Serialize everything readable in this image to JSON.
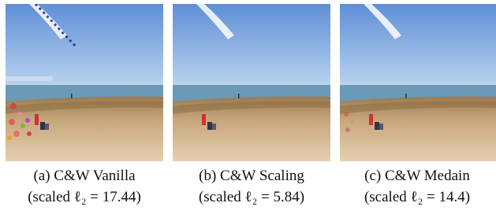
{
  "panels": [
    {
      "caption": "(a) C&W Vanilla",
      "metric": "(scaled ℓ₂ = 17.44)"
    },
    {
      "caption": "(b) C&W Scaling",
      "metric": "(scaled ℓ₂ = 5.84)"
    },
    {
      "caption": "(c) C&W Medain",
      "metric": "(scaled ℓ₂ = 14.4)"
    }
  ]
}
